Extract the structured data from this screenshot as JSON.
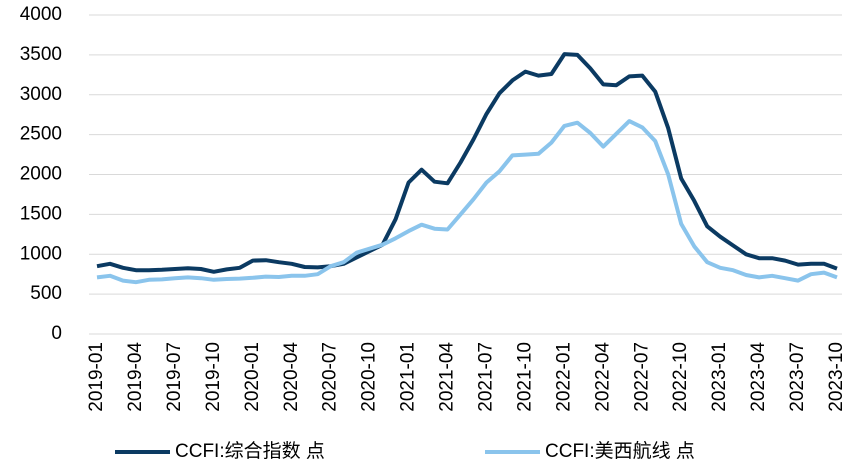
{
  "chart_data": {
    "type": "line",
    "x": [
      "2019-01",
      null,
      null,
      "2019-04",
      null,
      null,
      "2019-07",
      null,
      null,
      "2019-10",
      null,
      null,
      "2020-01",
      null,
      null,
      "2020-04",
      null,
      null,
      "2020-07",
      null,
      null,
      "2020-10",
      null,
      null,
      "2021-01",
      null,
      null,
      "2021-04",
      null,
      null,
      "2021-07",
      null,
      null,
      "2021-10",
      null,
      null,
      "2022-01",
      null,
      null,
      "2022-04",
      null,
      null,
      "2022-07",
      null,
      null,
      "2022-10",
      null,
      null,
      "2023-01",
      null,
      null,
      "2023-04",
      null,
      null,
      "2023-07",
      null,
      null,
      "2023-10"
    ],
    "series": [
      {
        "name": "CCFI:综合指数 点",
        "color": "#0b3a62",
        "values": [
          850,
          880,
          830,
          800,
          800,
          805,
          815,
          825,
          815,
          780,
          810,
          830,
          920,
          925,
          900,
          880,
          840,
          835,
          850,
          880,
          960,
          1040,
          1120,
          1440,
          1900,
          2060,
          1910,
          1890,
          2150,
          2440,
          2760,
          3020,
          3180,
          3290,
          3240,
          3260,
          3510,
          3500,
          3330,
          3130,
          3120,
          3230,
          3240,
          3040,
          2580,
          1950,
          1670,
          1350,
          1220,
          1110,
          1000,
          950,
          950,
          920,
          870,
          880,
          880,
          820
        ]
      },
      {
        "name": "CCFI:美西航线 点",
        "color": "#8ac4ec",
        "values": [
          710,
          730,
          670,
          650,
          680,
          685,
          700,
          710,
          700,
          680,
          690,
          695,
          705,
          720,
          715,
          730,
          730,
          750,
          850,
          900,
          1020,
          1070,
          1120,
          1200,
          1290,
          1370,
          1320,
          1310,
          1500,
          1690,
          1900,
          2040,
          2240,
          2250,
          2260,
          2400,
          2610,
          2650,
          2520,
          2350,
          2510,
          2670,
          2590,
          2420,
          2000,
          1380,
          1100,
          900,
          830,
          800,
          740,
          710,
          730,
          700,
          670,
          750,
          770,
          710
        ]
      }
    ],
    "ylim": [
      0,
      4000
    ],
    "yticks": [
      0,
      500,
      1000,
      1500,
      2000,
      2500,
      3000,
      3500,
      4000
    ],
    "grid": true,
    "legend": "bottom"
  }
}
